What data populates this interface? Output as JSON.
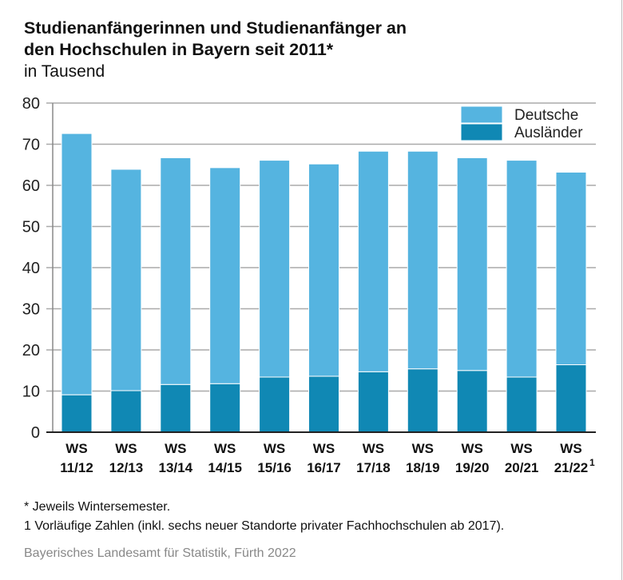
{
  "chart_data": {
    "type": "bar",
    "stacked": true,
    "title": "Studienanfängerinnen und Studienanfänger an den Hochschulen in Bayern seit 2011*",
    "title_lines": [
      "Studienanfängerinnen und Studienanfänger an",
      "den Hochschulen in Bayern seit 2011*"
    ],
    "subtitle": "in Tausend",
    "categories": [
      [
        "WS",
        "11/12"
      ],
      [
        "WS",
        "12/13"
      ],
      [
        "WS",
        "13/14"
      ],
      [
        "WS",
        "14/15"
      ],
      [
        "WS",
        "15/16"
      ],
      [
        "WS",
        "16/17"
      ],
      [
        "WS",
        "17/18"
      ],
      [
        "WS",
        "18/19"
      ],
      [
        "WS",
        "19/20"
      ],
      [
        "WS",
        "20/21"
      ],
      [
        "WS",
        "21/22"
      ]
    ],
    "category_superscripts": [
      "",
      "",
      "",
      "",
      "",
      "",
      "",
      "",
      "",
      "",
      "1"
    ],
    "series": [
      {
        "name": "Ausländer",
        "color": "#1088b4",
        "values": [
          9.1,
          10.1,
          11.6,
          11.8,
          13.4,
          13.6,
          14.7,
          15.4,
          15.0,
          13.4,
          16.4
        ]
      },
      {
        "name": "Deutsche",
        "color": "#55b4e0",
        "values": [
          63.5,
          53.8,
          55.1,
          52.5,
          52.7,
          51.6,
          53.6,
          52.9,
          51.7,
          52.7,
          46.8
        ]
      }
    ],
    "ylim": [
      0,
      80
    ],
    "yticks": [
      0,
      10,
      20,
      30,
      40,
      50,
      60,
      70,
      80
    ],
    "grid": true,
    "legend_placement": "top-right",
    "legend_order": [
      "Deutsche",
      "Ausländer"
    ]
  },
  "footnotes": [
    "*  Jeweils Wintersemester.",
    "1  Vorläufige Zahlen (inkl. sechs neuer Standorte privater Fachhochschulen ab 2017)."
  ],
  "source": "Bayerisches Landesamt für Statistik, Fürth 2022"
}
